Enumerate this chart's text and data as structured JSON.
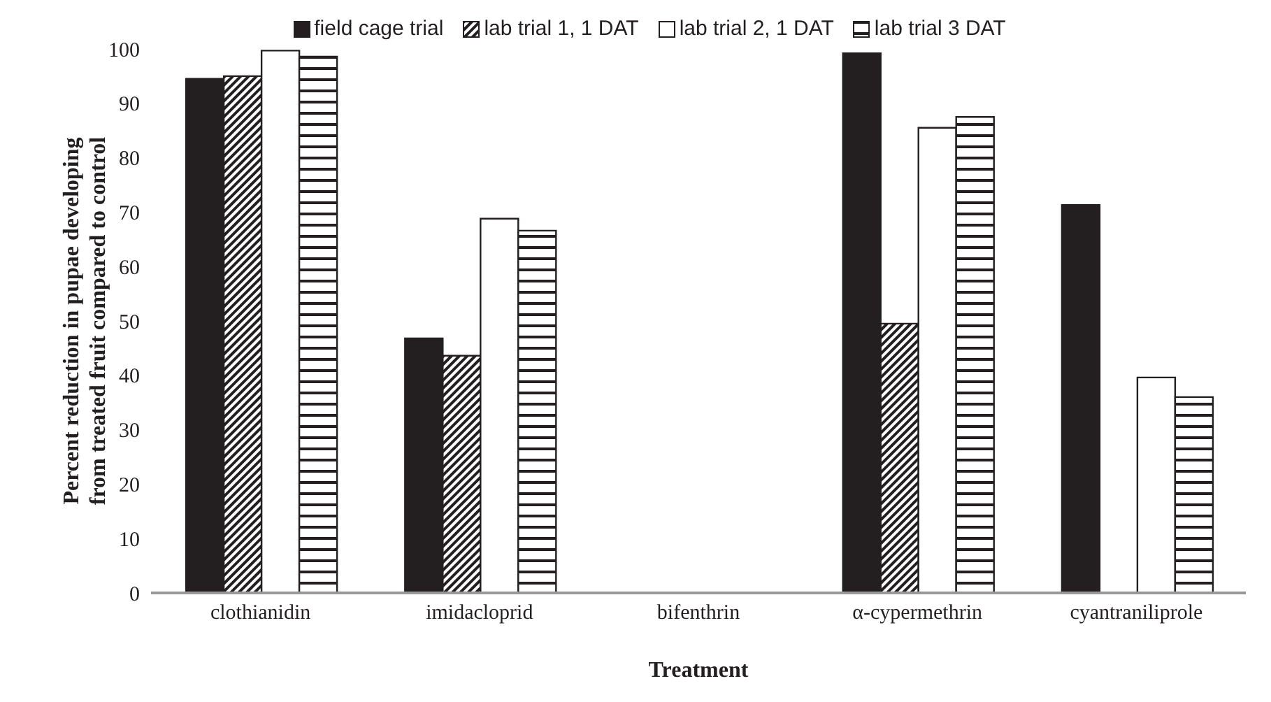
{
  "chart_data": {
    "type": "bar",
    "xlabel": "Treatment",
    "ylabel": "Percent reduction in pupae developing from treated fruit compared to control",
    "categories": [
      "clothianidin",
      "imidacloprid",
      "bifenthrin",
      "α-cypermethrin",
      "cyantraniliprole"
    ],
    "series": [
      {
        "name": "field cage trial",
        "color": "#231f20",
        "values": [
          94.5,
          46.8,
          0,
          99.2,
          71.3
        ]
      },
      {
        "name": "lab trial 1, 1 DAT",
        "color": "#231f20",
        "values": [
          95,
          43.6,
          0,
          49.5,
          0
        ]
      },
      {
        "name": "lab trial 2, 1 DAT",
        "color": "#ffffff",
        "values": [
          99.7,
          68.8,
          0,
          85.5,
          39.6
        ]
      },
      {
        "name": "lab trial 3 DAT",
        "color": "#231f20",
        "values": [
          98.6,
          66.6,
          0,
          87.5,
          36
        ]
      }
    ],
    "ylim": [
      0,
      100
    ],
    "yticks": [
      0,
      10,
      20,
      30,
      40,
      50,
      60,
      70,
      80,
      90,
      100
    ],
    "grid": false,
    "legend": "top"
  }
}
